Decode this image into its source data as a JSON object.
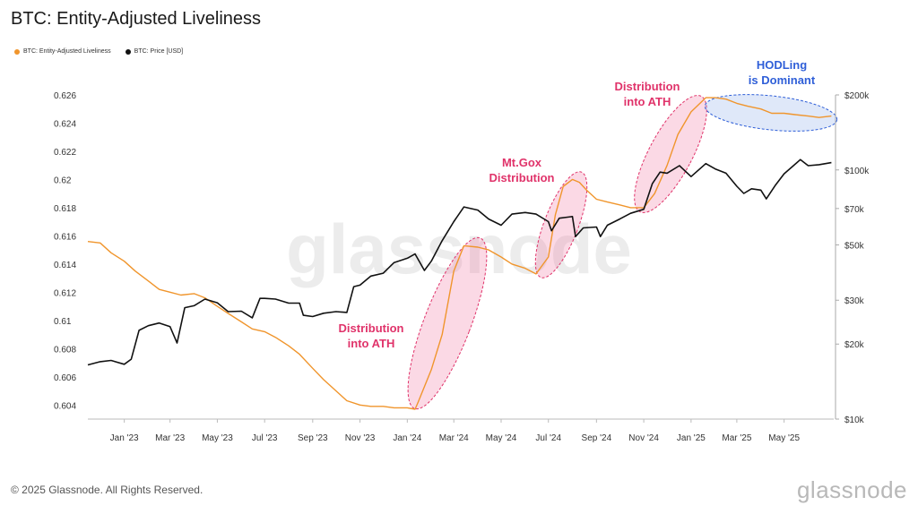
{
  "title": "BTC: Entity-Adjusted Liveliness",
  "legend": [
    {
      "label": "BTC: Entity-Adjusted Liveliness",
      "color": "#f0952c"
    },
    {
      "label": "BTC: Price [USD]",
      "color": "#111111"
    }
  ],
  "footer": "© 2025 Glassnode. All Rights Reserved.",
  "brand": "glassnode",
  "watermark": "glassnode",
  "chart_data": {
    "type": "line",
    "x_ticks": [
      "Jan '23",
      "Mar '23",
      "May '23",
      "Jul '23",
      "Sep '23",
      "Nov '23",
      "Jan '24",
      "Mar '24",
      "May '24",
      "Jul '24",
      "Sep '24",
      "Nov '24",
      "Jan '25",
      "Mar '25",
      "May '25"
    ],
    "left_axis": {
      "ticks": [
        "0.604",
        "0.606",
        "0.608",
        "0.61",
        "0.612",
        "0.614",
        "0.616",
        "0.618",
        "0.62",
        "0.622",
        "0.624",
        "0.626"
      ],
      "ylim": [
        0.603,
        0.626
      ]
    },
    "right_axis": {
      "ticks": [
        "$10k",
        "$20k",
        "$30k",
        "$50k",
        "$70k",
        "$100k",
        "$200k"
      ],
      "scale": "log",
      "ylim": [
        10000,
        200000
      ]
    },
    "series": [
      {
        "name": "BTC: Entity-Adjusted Liveliness",
        "color": "#f0952c",
        "axis": "left",
        "x": [
          "2022-11-15",
          "2022-12-01",
          "2022-12-15",
          "2023-01-01",
          "2023-01-15",
          "2023-02-01",
          "2023-02-15",
          "2023-03-01",
          "2023-03-15",
          "2023-04-01",
          "2023-04-15",
          "2023-05-01",
          "2023-05-15",
          "2023-06-01",
          "2023-06-15",
          "2023-07-01",
          "2023-07-15",
          "2023-08-01",
          "2023-08-15",
          "2023-09-01",
          "2023-09-15",
          "2023-10-01",
          "2023-10-15",
          "2023-11-01",
          "2023-11-15",
          "2023-12-01",
          "2023-12-15",
          "2024-01-01",
          "2024-01-11",
          "2024-01-15",
          "2024-02-01",
          "2024-02-15",
          "2024-03-01",
          "2024-03-14",
          "2024-04-01",
          "2024-04-15",
          "2024-05-01",
          "2024-05-15",
          "2024-06-01",
          "2024-06-15",
          "2024-07-01",
          "2024-07-10",
          "2024-07-20",
          "2024-08-01",
          "2024-08-10",
          "2024-08-20",
          "2024-09-01",
          "2024-09-15",
          "2024-10-01",
          "2024-10-15",
          "2024-11-01",
          "2024-11-15",
          "2024-12-01",
          "2024-12-15",
          "2025-01-01",
          "2025-01-20",
          "2025-02-01",
          "2025-02-15",
          "2025-03-01",
          "2025-03-15",
          "2025-04-01",
          "2025-04-15",
          "2025-05-01",
          "2025-05-15",
          "2025-06-01",
          "2025-06-15",
          "2025-07-01"
        ],
        "values": [
          0.6156,
          0.6155,
          0.6148,
          0.6142,
          0.6135,
          0.6128,
          0.6122,
          0.612,
          0.6118,
          0.6119,
          0.6116,
          0.611,
          0.6105,
          0.6099,
          0.6094,
          0.6092,
          0.6088,
          0.6082,
          0.6076,
          0.6066,
          0.6058,
          0.605,
          0.6043,
          0.604,
          0.6039,
          0.6039,
          0.6038,
          0.6038,
          0.6037,
          0.6042,
          0.6065,
          0.609,
          0.6135,
          0.6153,
          0.6152,
          0.615,
          0.6145,
          0.614,
          0.6137,
          0.6133,
          0.6145,
          0.6175,
          0.6195,
          0.62,
          0.6198,
          0.6192,
          0.6186,
          0.6184,
          0.6182,
          0.618,
          0.618,
          0.619,
          0.621,
          0.6232,
          0.6248,
          0.6258,
          0.6258,
          0.6257,
          0.6254,
          0.6252,
          0.625,
          0.6247,
          0.6247,
          0.6246,
          0.6245,
          0.6244,
          0.6245
        ]
      },
      {
        "name": "BTC: Price [USD]",
        "color": "#111111",
        "axis": "right",
        "x": [
          "2022-11-15",
          "2022-12-01",
          "2022-12-15",
          "2023-01-01",
          "2023-01-10",
          "2023-01-20",
          "2023-02-01",
          "2023-02-15",
          "2023-03-01",
          "2023-03-10",
          "2023-03-20",
          "2023-04-01",
          "2023-04-15",
          "2023-05-01",
          "2023-05-15",
          "2023-06-01",
          "2023-06-15",
          "2023-06-25",
          "2023-07-01",
          "2023-07-15",
          "2023-08-01",
          "2023-08-15",
          "2023-08-20",
          "2023-09-01",
          "2023-09-15",
          "2023-10-01",
          "2023-10-15",
          "2023-10-24",
          "2023-11-01",
          "2023-11-15",
          "2023-12-01",
          "2023-12-15",
          "2024-01-01",
          "2024-01-11",
          "2024-01-23",
          "2024-02-01",
          "2024-02-15",
          "2024-03-01",
          "2024-03-14",
          "2024-04-01",
          "2024-04-15",
          "2024-05-01",
          "2024-05-15",
          "2024-06-01",
          "2024-06-15",
          "2024-07-01",
          "2024-07-05",
          "2024-07-15",
          "2024-08-01",
          "2024-08-05",
          "2024-08-15",
          "2024-09-01",
          "2024-09-06",
          "2024-09-15",
          "2024-10-01",
          "2024-10-15",
          "2024-11-01",
          "2024-11-12",
          "2024-11-22",
          "2024-12-01",
          "2024-12-17",
          "2025-01-01",
          "2025-01-20",
          "2025-02-01",
          "2025-02-15",
          "2025-03-01",
          "2025-03-10",
          "2025-03-20",
          "2025-04-01",
          "2025-04-08",
          "2025-04-20",
          "2025-05-01",
          "2025-05-22",
          "2025-06-01",
          "2025-06-15",
          "2025-07-01"
        ],
        "values": [
          16500,
          17000,
          17200,
          16600,
          17400,
          22700,
          23700,
          24300,
          23500,
          20200,
          28000,
          28500,
          30300,
          29300,
          27000,
          27100,
          25500,
          30500,
          30500,
          30300,
          29200,
          29200,
          26100,
          25800,
          26600,
          27000,
          26800,
          34000,
          34500,
          37500,
          38500,
          42500,
          44200,
          46000,
          39500,
          43000,
          52000,
          62000,
          71000,
          69000,
          63500,
          60000,
          66500,
          67500,
          66500,
          62000,
          57000,
          64000,
          65000,
          54000,
          58500,
          59000,
          54000,
          60000,
          63500,
          67000,
          69500,
          88000,
          98000,
          97000,
          104000,
          94000,
          106000,
          101000,
          97000,
          86000,
          80500,
          84000,
          83000,
          76500,
          87000,
          96500,
          110000,
          104000,
          105000,
          107000
        ]
      }
    ],
    "annotations": [
      {
        "text": [
          "Distribution",
          "into ATH"
        ],
        "color": "#e0336a"
      },
      {
        "text": [
          "Mt.Gox",
          "Distribution"
        ],
        "color": "#e0336a"
      },
      {
        "text": [
          "Distribution",
          "into ATH"
        ],
        "color": "#e0336a"
      },
      {
        "text": [
          "HODLing",
          "is Dominant"
        ],
        "color": "#2f5fd8"
      }
    ]
  }
}
